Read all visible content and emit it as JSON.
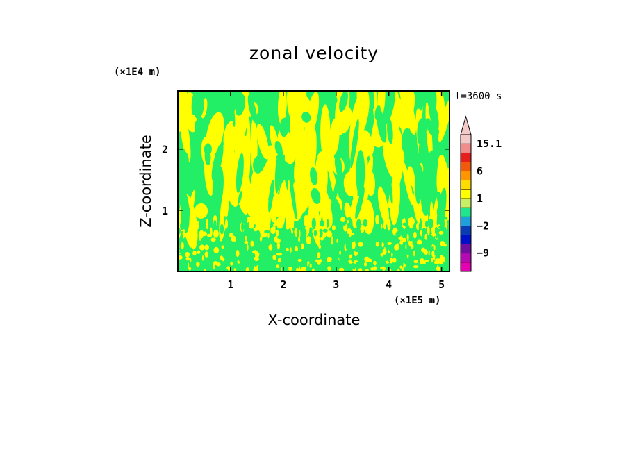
{
  "chart_data": {
    "type": "heatmap",
    "title": "zonal velocity",
    "xlabel": "X-coordinate",
    "ylabel": "Z-coordinate",
    "x_unit": "(×1E5 m)",
    "y_unit": "(×1E4 m)",
    "time_label": "t=3600 s",
    "xlim": [
      0,
      5.15
    ],
    "ylim": [
      0,
      2.95
    ],
    "x_ticks": [
      1,
      2,
      3,
      4,
      5
    ],
    "y_ticks": [
      1,
      2
    ],
    "x_tick_labels": [
      "1",
      "2",
      "3",
      "4",
      "5"
    ],
    "y_tick_labels": [
      "1",
      "2"
    ],
    "colorbar": {
      "levels": [
        -15,
        -12,
        -9,
        -6,
        -3,
        -2,
        -1,
        0,
        1,
        2,
        3,
        6,
        9,
        12,
        15.1
      ],
      "colors": [
        "#e600b4",
        "#b40ab4",
        "#6e0fa0",
        "#0010c8",
        "#0a3cb4",
        "#1ea0dc",
        "#1ee68c",
        "#c8f064",
        "#ffff00",
        "#ffdc00",
        "#ff9600",
        "#f05a0a",
        "#e61e1e",
        "#f08c8c",
        "#f5c8c8"
      ],
      "tick_labels": [
        "15.1",
        "6",
        "1",
        "−2",
        "−9"
      ],
      "tick_values": [
        15.1,
        6,
        1,
        -2,
        -9
      ],
      "top_extend": true
    },
    "field_colors": {
      "positive": "#ffff00",
      "negative": "#22ee66"
    }
  }
}
